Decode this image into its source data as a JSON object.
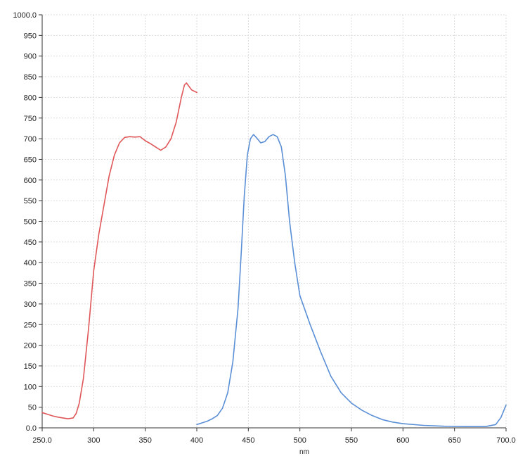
{
  "chart_data": {
    "type": "line",
    "title": "",
    "xlabel": "nm",
    "ylabel": "",
    "xlim": [
      250,
      700
    ],
    "ylim": [
      0,
      1000
    ],
    "grid": true,
    "x_ticks": [
      250,
      300,
      350,
      400,
      450,
      500,
      550,
      600,
      650,
      700
    ],
    "x_tick_labels": [
      "250.0",
      "300",
      "350",
      "400",
      "450",
      "500",
      "550",
      "600",
      "650",
      "700.0"
    ],
    "y_ticks": [
      0,
      50,
      100,
      150,
      200,
      250,
      300,
      350,
      400,
      450,
      500,
      550,
      600,
      650,
      700,
      750,
      800,
      850,
      900,
      950,
      1000
    ],
    "y_tick_labels": [
      "0.0",
      "50",
      "100",
      "150",
      "200",
      "250",
      "300",
      "350",
      "400",
      "450",
      "500",
      "550",
      "600",
      "650",
      "700",
      "750",
      "800",
      "850",
      "900",
      "950",
      "1000.0"
    ],
    "series": [
      {
        "color": "#e0575a",
        "x": [
          250,
          255,
          260,
          265,
          270,
          275,
          280,
          283,
          286,
          290,
          295,
          300,
          305,
          310,
          315,
          320,
          325,
          330,
          335,
          340,
          345,
          350,
          355,
          360,
          365,
          370,
          375,
          380,
          385,
          388,
          390,
          392,
          395,
          400
        ],
        "y": [
          37,
          33,
          29,
          26,
          24,
          22,
          24,
          35,
          60,
          120,
          240,
          380,
          470,
          540,
          610,
          660,
          690,
          703,
          705,
          704,
          705,
          695,
          688,
          680,
          672,
          680,
          700,
          740,
          800,
          830,
          835,
          828,
          818,
          812
        ]
      },
      {
        "color": "#5b8fd6",
        "x": [
          400,
          405,
          410,
          415,
          420,
          425,
          430,
          435,
          440,
          443,
          446,
          449,
          452,
          455,
          458,
          462,
          466,
          470,
          474,
          478,
          482,
          486,
          490,
          495,
          500,
          510,
          520,
          530,
          540,
          550,
          560,
          570,
          580,
          590,
          600,
          620,
          640,
          660,
          680,
          690,
          695,
          700
        ],
        "y": [
          8,
          12,
          16,
          22,
          30,
          48,
          85,
          160,
          290,
          420,
          560,
          660,
          700,
          710,
          702,
          690,
          693,
          705,
          710,
          705,
          680,
          610,
          500,
          400,
          320,
          250,
          185,
          125,
          85,
          60,
          43,
          30,
          20,
          14,
          10,
          6,
          4,
          3,
          3,
          8,
          25,
          55
        ]
      }
    ]
  }
}
